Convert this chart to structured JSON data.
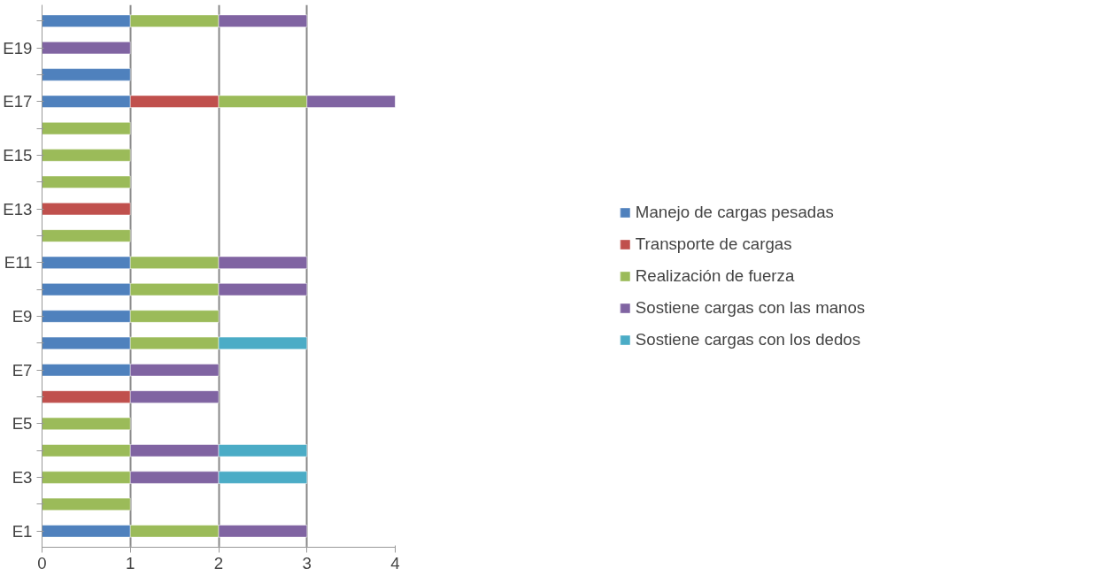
{
  "chart_data": {
    "type": "bar",
    "orientation": "horizontal",
    "stacked": true,
    "categories": [
      null,
      "E19",
      null,
      "E17",
      null,
      "E15",
      null,
      "E13",
      null,
      "E11",
      null,
      "E9",
      null,
      "E7",
      null,
      "E5",
      null,
      "E3",
      null,
      "E1"
    ],
    "series": [
      {
        "name": "Manejo de cargas pesadas",
        "color": "#4f81bd",
        "values": [
          1,
          null,
          1,
          1,
          null,
          null,
          null,
          null,
          null,
          1,
          1,
          1,
          1,
          1,
          null,
          null,
          null,
          null,
          null,
          1
        ]
      },
      {
        "name": "Transporte de cargas",
        "color": "#c0504d",
        "values": [
          null,
          null,
          null,
          1,
          null,
          null,
          null,
          1,
          null,
          null,
          null,
          null,
          null,
          null,
          1,
          null,
          null,
          null,
          null,
          null
        ]
      },
      {
        "name": "Realización de fuerza",
        "color": "#9bbb59",
        "values": [
          1,
          null,
          null,
          1,
          1,
          1,
          1,
          null,
          1,
          1,
          1,
          1,
          1,
          null,
          null,
          1,
          1,
          1,
          1,
          1
        ]
      },
      {
        "name": "Sostiene cargas con las manos",
        "color": "#8064a2",
        "values": [
          1,
          1,
          null,
          1,
          null,
          null,
          null,
          null,
          null,
          1,
          1,
          null,
          null,
          1,
          1,
          null,
          1,
          1,
          null,
          1
        ]
      },
      {
        "name": "Sostiene cargas con los dedos",
        "color": "#4bacc6",
        "values": [
          null,
          null,
          null,
          null,
          null,
          null,
          null,
          null,
          null,
          null,
          null,
          null,
          1,
          null,
          null,
          null,
          1,
          1,
          null,
          null
        ]
      }
    ],
    "xlim": [
      0,
      4
    ],
    "xticks": [
      0,
      1,
      2,
      3,
      4
    ],
    "grid": "x",
    "legend": "right"
  }
}
